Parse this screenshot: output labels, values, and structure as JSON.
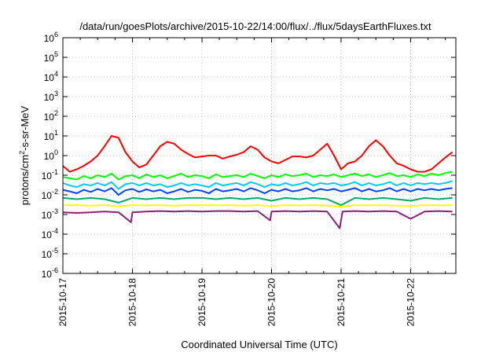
{
  "chart_data": {
    "type": "line",
    "title": "/data/run/goesPlots/archive/2015-10-22/14:00/flux/../flux/5daysEarthFluxes.txt",
    "xlabel": "Coordinated Universal Time (UTC)",
    "ylabel_parts": {
      "base": "protons/cm",
      "sup": "2",
      "rest": "-s-sr-MeV"
    },
    "y_scale": "log",
    "ylim": [
      1e-06,
      1000000.0
    ],
    "y_ticks": [
      {
        "value": 1000000.0,
        "base": "10",
        "exp": "6"
      },
      {
        "value": 100000.0,
        "base": "10",
        "exp": "5"
      },
      {
        "value": 10000.0,
        "base": "10",
        "exp": "4"
      },
      {
        "value": 1000.0,
        "base": "10",
        "exp": "3"
      },
      {
        "value": 100.0,
        "base": "10",
        "exp": "2"
      },
      {
        "value": 10.0,
        "base": "10",
        "exp": "1"
      },
      {
        "value": 1.0,
        "base": "10",
        "exp": "0"
      },
      {
        "value": 0.1,
        "base": "10",
        "exp": "-1"
      },
      {
        "value": 0.01,
        "base": "10",
        "exp": "-2"
      },
      {
        "value": 0.001,
        "base": "10",
        "exp": "-3"
      },
      {
        "value": 0.0001,
        "base": "10",
        "exp": "-4"
      },
      {
        "value": 1e-05,
        "base": "10",
        "exp": "-5"
      },
      {
        "value": 1e-06,
        "base": "10",
        "exp": "-6"
      }
    ],
    "x_ticks": [
      "2015-10-17",
      "2015-10-18",
      "2015-10-19",
      "2015-10-20",
      "2015-10-21",
      "2015-10-22"
    ],
    "x_range_days": [
      0,
      5.65
    ],
    "grid": true,
    "series": [
      {
        "color": "#ff0000",
        "x": [
          0,
          0.1,
          0.2,
          0.3,
          0.4,
          0.5,
          0.6,
          0.7,
          0.8,
          0.9,
          1.0,
          1.1,
          1.2,
          1.3,
          1.4,
          1.5,
          1.6,
          1.7,
          1.8,
          1.9,
          2.0,
          2.1,
          2.2,
          2.3,
          2.4,
          2.5,
          2.6,
          2.7,
          2.8,
          2.9,
          3.0,
          3.1,
          3.2,
          3.3,
          3.4,
          3.5,
          3.6,
          3.7,
          3.8,
          3.9,
          4.0,
          4.1,
          4.2,
          4.3,
          4.4,
          4.5,
          4.6,
          4.7,
          4.8,
          4.9,
          5.0,
          5.1,
          5.2,
          5.3,
          5.4,
          5.5,
          5.6
        ],
        "y": [
          0.3,
          0.15,
          0.2,
          0.3,
          0.5,
          1,
          3,
          10,
          8,
          1.5,
          0.5,
          0.25,
          0.35,
          1,
          3,
          5,
          4,
          2,
          1.2,
          0.8,
          0.9,
          1,
          1,
          0.7,
          0.9,
          1.1,
          1.5,
          3,
          2,
          0.8,
          0.5,
          0.4,
          0.6,
          0.9,
          0.9,
          0.8,
          1,
          2,
          4,
          1,
          0.2,
          0.4,
          0.5,
          1,
          3,
          6,
          3,
          1,
          0.4,
          0.3,
          0.2,
          0.15,
          0.15,
          0.2,
          0.4,
          0.8,
          1.5
        ]
      },
      {
        "color": "#00ff00",
        "x": [
          0,
          0.1,
          0.2,
          0.3,
          0.4,
          0.5,
          0.6,
          0.7,
          0.8,
          0.9,
          1.0,
          1.1,
          1.2,
          1.3,
          1.4,
          1.5,
          1.6,
          1.7,
          1.8,
          1.9,
          2.0,
          2.1,
          2.2,
          2.3,
          2.4,
          2.5,
          2.6,
          2.7,
          2.8,
          2.9,
          3.0,
          3.1,
          3.2,
          3.3,
          3.4,
          3.5,
          3.6,
          3.7,
          3.8,
          3.9,
          4.0,
          4.1,
          4.2,
          4.3,
          4.4,
          4.5,
          4.6,
          4.7,
          4.8,
          4.9,
          5.0,
          5.1,
          5.2,
          5.3,
          5.4,
          5.5,
          5.6
        ],
        "y": [
          0.08,
          0.07,
          0.06,
          0.09,
          0.07,
          0.1,
          0.08,
          0.12,
          0.06,
          0.09,
          0.1,
          0.07,
          0.11,
          0.08,
          0.1,
          0.07,
          0.09,
          0.12,
          0.08,
          0.1,
          0.09,
          0.07,
          0.11,
          0.08,
          0.09,
          0.1,
          0.08,
          0.12,
          0.09,
          0.07,
          0.1,
          0.08,
          0.11,
          0.09,
          0.1,
          0.12,
          0.08,
          0.1,
          0.09,
          0.11,
          0.08,
          0.1,
          0.12,
          0.09,
          0.11,
          0.08,
          0.1,
          0.13,
          0.09,
          0.1,
          0.08,
          0.11,
          0.09,
          0.12,
          0.1,
          0.13,
          0.15
        ]
      },
      {
        "color": "#00ccff",
        "x": [
          0,
          0.1,
          0.2,
          0.3,
          0.4,
          0.5,
          0.6,
          0.7,
          0.8,
          0.9,
          1.0,
          1.1,
          1.2,
          1.3,
          1.4,
          1.5,
          1.6,
          1.7,
          1.8,
          1.9,
          2.0,
          2.1,
          2.2,
          2.3,
          2.4,
          2.5,
          2.6,
          2.7,
          2.8,
          2.9,
          3.0,
          3.1,
          3.2,
          3.3,
          3.4,
          3.5,
          3.6,
          3.7,
          3.8,
          3.9,
          4.0,
          4.1,
          4.2,
          4.3,
          4.4,
          4.5,
          4.6,
          4.7,
          4.8,
          4.9,
          5.0,
          5.1,
          5.2,
          5.3,
          5.4,
          5.5,
          5.6
        ],
        "y": [
          0.04,
          0.03,
          0.025,
          0.035,
          0.03,
          0.04,
          0.03,
          0.045,
          0.02,
          0.035,
          0.04,
          0.03,
          0.04,
          0.03,
          0.035,
          0.025,
          0.03,
          0.04,
          0.03,
          0.035,
          0.03,
          0.025,
          0.04,
          0.03,
          0.035,
          0.04,
          0.03,
          0.045,
          0.035,
          0.025,
          0.035,
          0.03,
          0.04,
          0.03,
          0.035,
          0.045,
          0.03,
          0.04,
          0.035,
          0.04,
          0.03,
          0.035,
          0.045,
          0.03,
          0.04,
          0.03,
          0.035,
          0.045,
          0.03,
          0.04,
          0.03,
          0.04,
          0.035,
          0.04,
          0.035,
          0.04,
          0.05
        ]
      },
      {
        "color": "#0044ff",
        "x": [
          0,
          0.1,
          0.2,
          0.3,
          0.4,
          0.5,
          0.6,
          0.7,
          0.8,
          0.9,
          1.0,
          1.1,
          1.2,
          1.3,
          1.4,
          1.5,
          1.6,
          1.7,
          1.8,
          1.9,
          2.0,
          2.1,
          2.2,
          2.3,
          2.4,
          2.5,
          2.6,
          2.7,
          2.8,
          2.9,
          3.0,
          3.1,
          3.2,
          3.3,
          3.4,
          3.5,
          3.6,
          3.7,
          3.8,
          3.9,
          4.0,
          4.1,
          4.2,
          4.3,
          4.4,
          4.5,
          4.6,
          4.7,
          4.8,
          4.9,
          5.0,
          5.1,
          5.2,
          5.3,
          5.4,
          5.5,
          5.6
        ],
        "y": [
          0.018,
          0.015,
          0.012,
          0.018,
          0.014,
          0.02,
          0.015,
          0.022,
          0.01,
          0.017,
          0.02,
          0.014,
          0.019,
          0.015,
          0.018,
          0.012,
          0.015,
          0.02,
          0.014,
          0.018,
          0.016,
          0.012,
          0.02,
          0.015,
          0.017,
          0.02,
          0.015,
          0.022,
          0.017,
          0.012,
          0.018,
          0.015,
          0.02,
          0.015,
          0.017,
          0.022,
          0.015,
          0.02,
          0.017,
          0.02,
          0.015,
          0.018,
          0.022,
          0.015,
          0.02,
          0.015,
          0.017,
          0.022,
          0.015,
          0.02,
          0.015,
          0.02,
          0.017,
          0.02,
          0.017,
          0.02,
          0.022
        ]
      },
      {
        "color": "#00aa66",
        "x": [
          0,
          0.2,
          0.4,
          0.6,
          0.8,
          1.0,
          1.2,
          1.4,
          1.6,
          1.8,
          2.0,
          2.2,
          2.4,
          2.6,
          2.8,
          3.0,
          3.2,
          3.4,
          3.6,
          3.8,
          4.0,
          4.2,
          4.4,
          4.6,
          4.8,
          5.0,
          5.2,
          5.4,
          5.6
        ],
        "y": [
          0.007,
          0.006,
          0.007,
          0.006,
          0.004,
          0.007,
          0.006,
          0.007,
          0.006,
          0.007,
          0.007,
          0.006,
          0.007,
          0.006,
          0.007,
          0.005,
          0.007,
          0.006,
          0.007,
          0.006,
          0.003,
          0.007,
          0.006,
          0.007,
          0.006,
          0.005,
          0.007,
          0.006,
          0.007
        ]
      },
      {
        "color": "#ffff00",
        "x": [
          0,
          0.2,
          0.4,
          0.6,
          0.8,
          1.0,
          1.2,
          1.4,
          1.6,
          1.8,
          2.0,
          2.2,
          2.4,
          2.6,
          2.8,
          3.0,
          3.2,
          3.4,
          3.6,
          3.8,
          4.0,
          4.2,
          4.4,
          4.6,
          4.8,
          5.0,
          5.2,
          5.4,
          5.6
        ],
        "y": [
          0.003,
          0.003,
          0.0028,
          0.003,
          0.0026,
          0.003,
          0.0029,
          0.003,
          0.0028,
          0.003,
          0.003,
          0.0029,
          0.003,
          0.0028,
          0.003,
          0.0027,
          0.003,
          0.0029,
          0.003,
          0.0028,
          0.0025,
          0.003,
          0.0029,
          0.003,
          0.0028,
          0.0027,
          0.003,
          0.0029,
          0.003
        ]
      },
      {
        "color": "#882277",
        "x": [
          0,
          0.2,
          0.4,
          0.6,
          0.8,
          0.98,
          1.0,
          1.2,
          1.4,
          1.6,
          1.8,
          2.0,
          2.2,
          2.4,
          2.6,
          2.8,
          2.98,
          3.0,
          3.2,
          3.4,
          3.6,
          3.8,
          3.98,
          4.02,
          4.2,
          4.4,
          4.6,
          4.8,
          5.0,
          5.2,
          5.4,
          5.6
        ],
        "y": [
          0.0013,
          0.0012,
          0.0013,
          0.0014,
          0.0013,
          0.0004,
          0.0013,
          0.0014,
          0.0015,
          0.0014,
          0.0015,
          0.0014,
          0.0015,
          0.0015,
          0.0014,
          0.0015,
          0.0005,
          0.0014,
          0.0015,
          0.0014,
          0.0015,
          0.0014,
          0.0002,
          0.0014,
          0.0015,
          0.0014,
          0.0015,
          0.0014,
          0.0006,
          0.0014,
          0.0015,
          0.0014
        ]
      }
    ]
  }
}
